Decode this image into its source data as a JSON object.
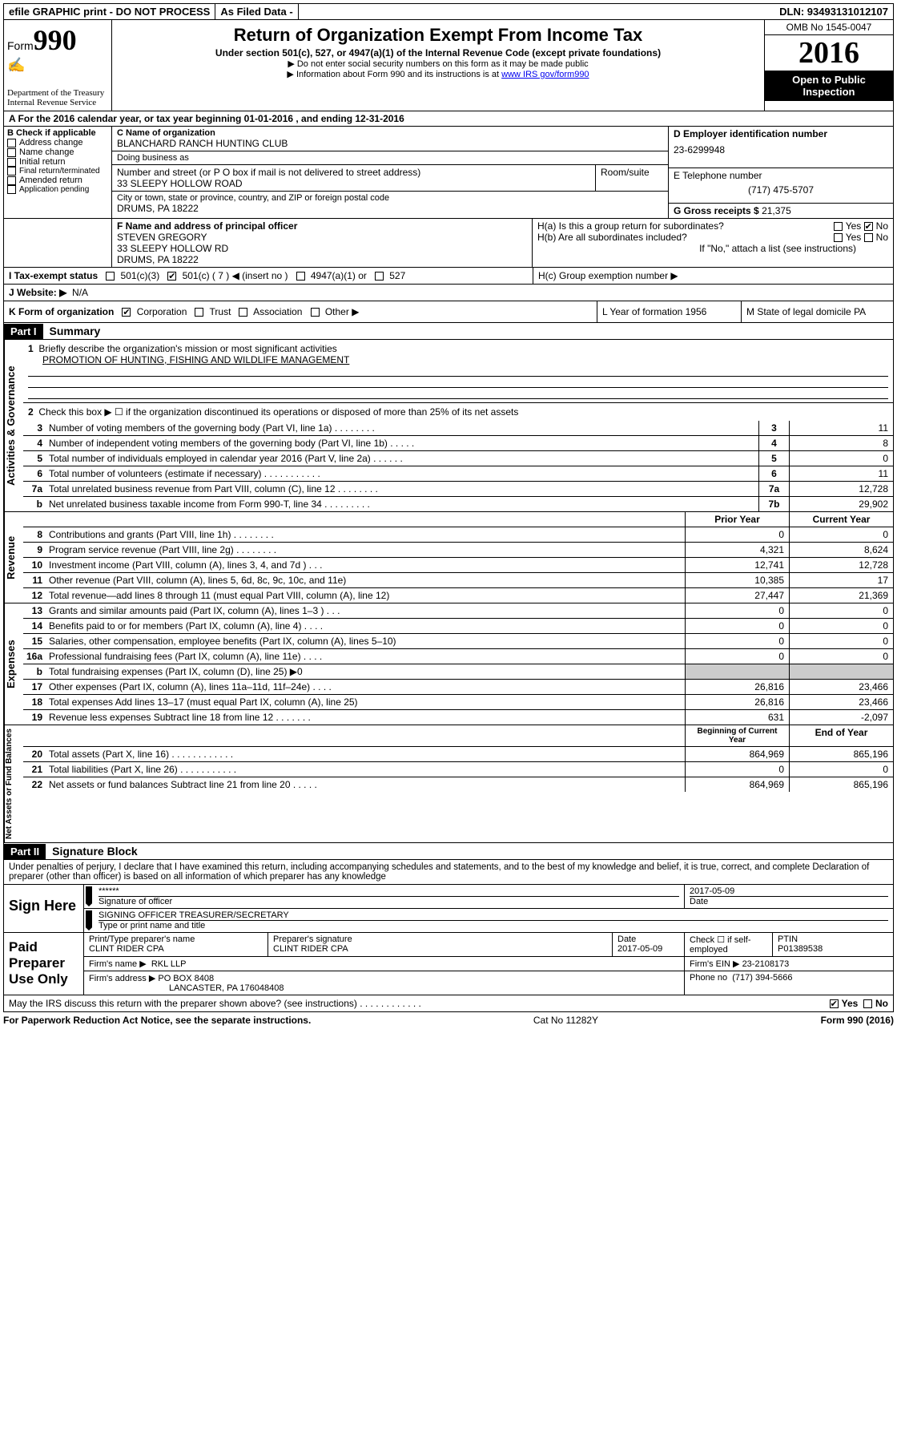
{
  "topbar": {
    "efile": "efile GRAPHIC print - DO NOT PROCESS",
    "asfiled": "As Filed Data -",
    "dln": "DLN: 93493131012107"
  },
  "header": {
    "form_label": "Form",
    "form_number": "990",
    "dept1": "Department of the Treasury",
    "dept2": "Internal Revenue Service",
    "title": "Return of Organization Exempt From Income Tax",
    "subtitle": "Under section 501(c), 527, or 4947(a)(1) of the Internal Revenue Code (except private foundations)",
    "note1": "▶ Do not enter social security numbers on this form as it may be made public",
    "note2_pre": "▶ Information about Form 990 and its instructions is at ",
    "note2_link": "www IRS gov/form990",
    "omb": "OMB No 1545-0047",
    "year": "2016",
    "otpi1": "Open to Public",
    "otpi2": "Inspection"
  },
  "A": {
    "text": "A  For the 2016 calendar year, or tax year beginning 01-01-2016   , and ending 12-31-2016"
  },
  "B": {
    "label": "B Check if applicable",
    "opts": [
      "Address change",
      "Name change",
      "Initial return",
      "Final return/terminated",
      "Amended return",
      "Application pending"
    ]
  },
  "C": {
    "name_lbl": "C Name of organization",
    "name": "BLANCHARD RANCH HUNTING CLUB",
    "dba_lbl": "Doing business as",
    "dba": "",
    "addr_lbl": "Number and street (or P O  box if mail is not delivered to street address)",
    "room_lbl": "Room/suite",
    "addr": "33 SLEEPY HOLLOW ROAD",
    "city_lbl": "City or town, state or province, country, and ZIP or foreign postal code",
    "city": "DRUMS, PA  18222"
  },
  "D": {
    "lbl": "D Employer identification number",
    "val": "23-6299948"
  },
  "E": {
    "lbl": "E Telephone number",
    "val": "(717) 475-5707"
  },
  "G": {
    "lbl": "G Gross receipts $",
    "val": "21,375"
  },
  "F": {
    "lbl": "F  Name and address of principal officer",
    "name": "STEVEN GREGORY",
    "addr1": "33 SLEEPY HOLLOW RD",
    "addr2": "DRUMS, PA  18222"
  },
  "H": {
    "a": "H(a)  Is this a group return for subordinates?",
    "b": "H(b)  Are all subordinates included?",
    "bnote": "If \"No,\" attach a list  (see instructions)",
    "c": "H(c)  Group exemption number ▶",
    "yes": "Yes",
    "no": "No"
  },
  "I": {
    "lbl": "I   Tax-exempt status",
    "o1": "501(c)(3)",
    "o2": "501(c) ( 7 ) ◀ (insert no )",
    "o3": "4947(a)(1) or",
    "o4": "527"
  },
  "J": {
    "lbl": "J  Website: ▶",
    "val": "N/A"
  },
  "K": {
    "lbl": "K Form of organization",
    "o1": "Corporation",
    "o2": "Trust",
    "o3": "Association",
    "o4": "Other ▶"
  },
  "L": {
    "lbl": "L Year of formation  1956"
  },
  "M": {
    "lbl": "M State of legal domicile  PA"
  },
  "part1": {
    "hdr": "Part I",
    "title": "Summary"
  },
  "side": {
    "ag": "Activities & Governance",
    "rev": "Revenue",
    "exp": "Expenses",
    "na": "Net Assets or Fund Balances"
  },
  "summary": {
    "l1": "Briefly describe the organization's mission or most significant activities",
    "l1v": "PROMOTION OF HUNTING, FISHING AND WILDLIFE MANAGEMENT",
    "l2": "Check this box ▶ ☐  if the organization discontinued its operations or disposed of more than 25% of its net assets",
    "rows_ag": [
      {
        "n": "3",
        "d": "Number of voting members of the governing body (Part VI, line 1a)   .     .     .     .     .     .     .     .",
        "box": "3",
        "v": "11"
      },
      {
        "n": "4",
        "d": "Number of independent voting members of the governing body (Part VI, line 1b)    .     .     .     .     .",
        "box": "4",
        "v": "8"
      },
      {
        "n": "5",
        "d": "Total number of individuals employed in calendar year 2016 (Part V, line 2a)    .     .     .     .     .     .",
        "box": "5",
        "v": "0"
      },
      {
        "n": "6",
        "d": "Total number of volunteers (estimate if necessary)    .     .     .     .     .     .     .     .     .     .     .",
        "box": "6",
        "v": "11"
      },
      {
        "n": "7a",
        "d": "Total unrelated business revenue from Part VIII, column (C), line 12   .     .     .     .     .     .     .     .",
        "box": "7a",
        "v": "12,728"
      },
      {
        "n": "b",
        "d": "Net unrelated business taxable income from Form 990-T, line 34   .     .     .     .     .     .     .     .     .",
        "box": "7b",
        "v": "29,902"
      }
    ],
    "col_hdr": {
      "py": "Prior Year",
      "cy": "Current Year"
    },
    "rows_rev": [
      {
        "n": "8",
        "d": "Contributions and grants (Part VIII, line 1h)    .     .     .     .     .     .     .     .",
        "py": "0",
        "cy": "0"
      },
      {
        "n": "9",
        "d": "Program service revenue (Part VIII, line 2g)    .     .     .     .     .     .     .     .",
        "py": "4,321",
        "cy": "8,624"
      },
      {
        "n": "10",
        "d": "Investment income (Part VIII, column (A), lines 3, 4, and 7d )   .     .     .",
        "py": "12,741",
        "cy": "12,728"
      },
      {
        "n": "11",
        "d": "Other revenue (Part VIII, column (A), lines 5, 6d, 8c, 9c, 10c, and 11e)",
        "py": "10,385",
        "cy": "17"
      },
      {
        "n": "12",
        "d": "Total revenue—add lines 8 through 11 (must equal Part VIII, column (A), line 12)",
        "py": "27,447",
        "cy": "21,369"
      }
    ],
    "rows_exp": [
      {
        "n": "13",
        "d": "Grants and similar amounts paid (Part IX, column (A), lines 1–3 )   .     .     .",
        "py": "0",
        "cy": "0"
      },
      {
        "n": "14",
        "d": "Benefits paid to or for members (Part IX, column (A), line 4)   .     .     .     .",
        "py": "0",
        "cy": "0"
      },
      {
        "n": "15",
        "d": "Salaries, other compensation, employee benefits (Part IX, column (A), lines 5–10)",
        "py": "0",
        "cy": "0"
      },
      {
        "n": "16a",
        "d": "Professional fundraising fees (Part IX, column (A), line 11e)    .     .     .     .",
        "py": "0",
        "cy": "0"
      },
      {
        "n": "b",
        "d": "Total fundraising expenses (Part IX, column (D), line 25) ▶0",
        "py": "",
        "cy": "",
        "shaded": true
      },
      {
        "n": "17",
        "d": "Other expenses (Part IX, column (A), lines 11a–11d, 11f–24e)    .     .     .     .",
        "py": "26,816",
        "cy": "23,466"
      },
      {
        "n": "18",
        "d": "Total expenses  Add lines 13–17 (must equal Part IX, column (A), line 25)",
        "py": "26,816",
        "cy": "23,466"
      },
      {
        "n": "19",
        "d": "Revenue less expenses  Subtract line 18 from line 12  .     .     .     .     .     .     .",
        "py": "631",
        "cy": "-2,097"
      }
    ],
    "col_hdr2": {
      "py": "Beginning of Current Year",
      "cy": "End of Year"
    },
    "rows_na": [
      {
        "n": "20",
        "d": "Total assets (Part X, line 16)   .     .     .     .     .     .     .     .     .     .     .     .",
        "py": "864,969",
        "cy": "865,196"
      },
      {
        "n": "21",
        "d": "Total liabilities (Part X, line 26)   .     .     .     .     .     .     .     .     .     .     .",
        "py": "0",
        "cy": "0"
      },
      {
        "n": "22",
        "d": "Net assets or fund balances  Subtract line 21 from line 20   .     .     .     .     .",
        "py": "864,969",
        "cy": "865,196"
      }
    ]
  },
  "part2": {
    "hdr": "Part II",
    "title": "Signature Block"
  },
  "perjury": "Under penalties of perjury, I declare that I have examined this return, including accompanying schedules and statements, and to the best of my knowledge and belief, it is true, correct, and complete  Declaration of preparer (other than officer) is based on all information of which preparer has any knowledge",
  "sign": {
    "here": "Sign Here",
    "stars": "******",
    "sig_lbl": "Signature of officer",
    "date": "2017-05-09",
    "date_lbl": "Date",
    "name": "SIGNING OFFICER  TREASURER/SECRETARY",
    "name_lbl": "Type or print name and title"
  },
  "prep": {
    "title": "Paid Preparer Use Only",
    "pname_lbl": "Print/Type preparer's name",
    "pname": "CLINT RIDER CPA",
    "psig_lbl": "Preparer's signature",
    "psig": "CLINT RIDER CPA",
    "pdate_lbl": "Date",
    "pdate": "2017-05-09",
    "check_lbl": "Check ☐ if self-employed",
    "ptin_lbl": "PTIN",
    "ptin": "P01389538",
    "firm_lbl": "Firm's name    ▶",
    "firm": "RKL LLP",
    "ein_lbl": "Firm's EIN ▶",
    "ein": "23-2108173",
    "addr_lbl": "Firm's address ▶",
    "addr1": "PO BOX 8408",
    "addr2": "LANCASTER, PA  176048408",
    "phone_lbl": "Phone no",
    "phone": "(717) 394-5666"
  },
  "discuss": {
    "q": "May the IRS discuss this return with the preparer shown above? (see instructions)    .     .     .     .     .     .     .     .     .     .     .     .",
    "yes": "Yes",
    "no": "No"
  },
  "footer": {
    "left": "For Paperwork Reduction Act Notice, see the separate instructions.",
    "mid": "Cat  No  11282Y",
    "right": "Form 990 (2016)"
  }
}
